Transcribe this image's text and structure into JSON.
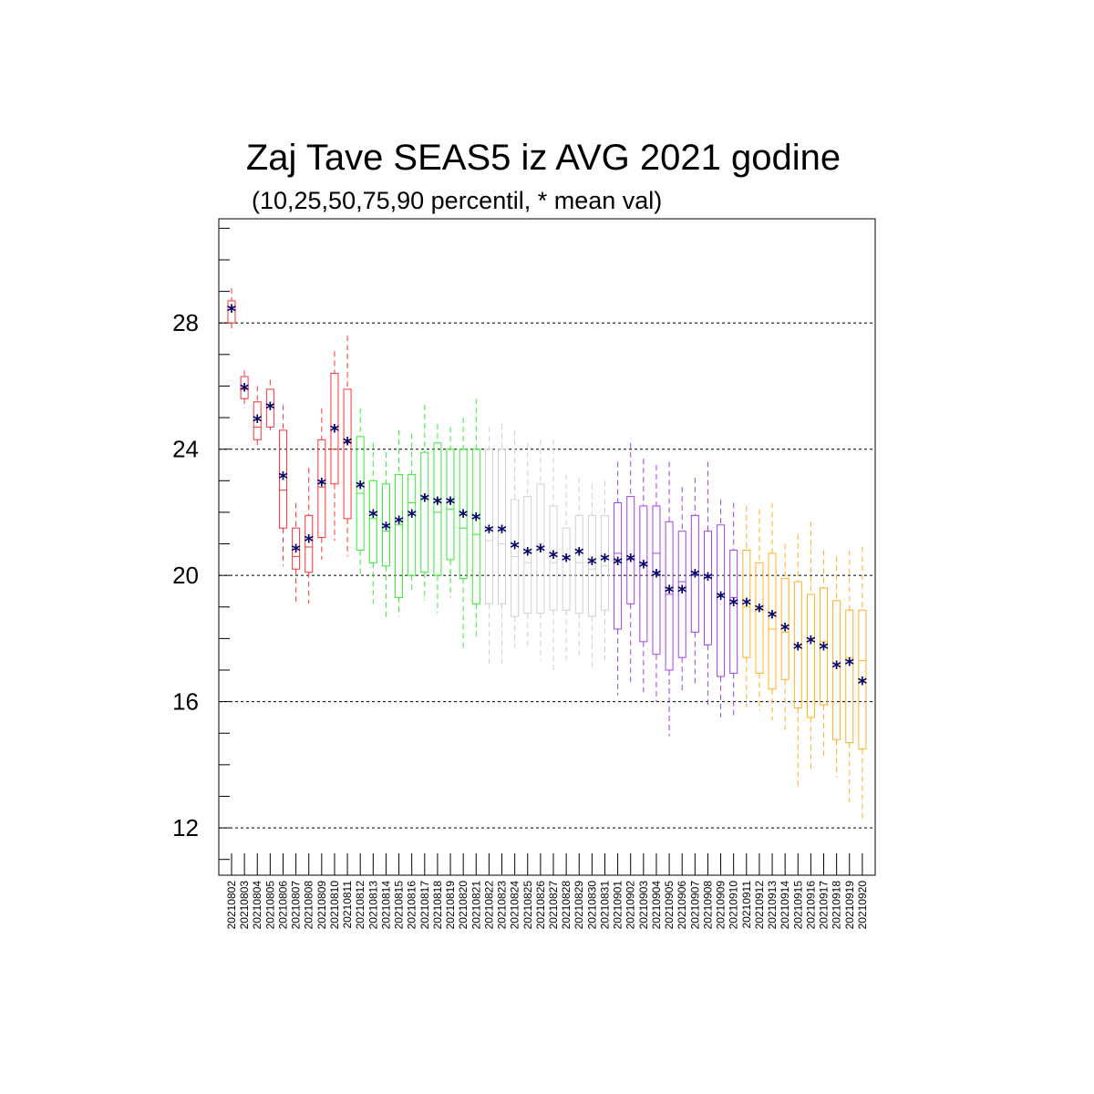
{
  "chart_data": {
    "type": "box",
    "title": "Zaj Tave SEAS5 iz AVG 2021 godine",
    "subtitle": "(10,25,50,75,90 percentil, * mean val)",
    "xlabel": "",
    "ylabel": "",
    "ylim": [
      10.5,
      31.3
    ],
    "yticks": [
      12,
      16,
      20,
      24,
      28
    ],
    "grid": "horizontal dashed at major ticks",
    "mean_color": "#000066",
    "categories": [
      "20210802",
      "20210803",
      "20210804",
      "20210805",
      "20210806",
      "20210807",
      "20210808",
      "20210809",
      "20210810",
      "20210811",
      "20210812",
      "20210813",
      "20210814",
      "20210815",
      "20210816",
      "20210817",
      "20210818",
      "20210819",
      "20210820",
      "20210821",
      "20210822",
      "20210823",
      "20210824",
      "20210825",
      "20210826",
      "20210827",
      "20210828",
      "20210829",
      "20210830",
      "20210831",
      "20210901",
      "20210902",
      "20210903",
      "20210904",
      "20210905",
      "20210906",
      "20210907",
      "20210908",
      "20210909",
      "20210910",
      "20210911",
      "20210912",
      "20210913",
      "20210914",
      "20210915",
      "20210916",
      "20210917",
      "20210918",
      "20210919",
      "20210920"
    ],
    "colors": [
      "#ff3333",
      "#ff3333",
      "#ff3333",
      "#ff3333",
      "#ff3333",
      "#ff3333",
      "#ff3333",
      "#ff3333",
      "#ff3333",
      "#ff3333",
      "#33ee33",
      "#33ee33",
      "#33ee33",
      "#33ee33",
      "#33ee33",
      "#33ee33",
      "#33ee33",
      "#33ee33",
      "#33ee33",
      "#33ee33",
      "#d0d0d0",
      "#d0d0d0",
      "#d0d0d0",
      "#d0d0d0",
      "#d0d0d0",
      "#d0d0d0",
      "#d0d0d0",
      "#d0d0d0",
      "#d0d0d0",
      "#d0d0d0",
      "#a040f0",
      "#a040f0",
      "#a040f0",
      "#a040f0",
      "#a040f0",
      "#a040f0",
      "#a040f0",
      "#a040f0",
      "#a040f0",
      "#a040f0",
      "#ffb020",
      "#ffb020",
      "#ffb020",
      "#ffb020",
      "#ffb020",
      "#ffb020",
      "#ffb020",
      "#ffb020",
      "#ffb020",
      "#ffb020"
    ],
    "p10": [
      27.7,
      25.3,
      24.0,
      24.6,
      20.3,
      19.1,
      19.1,
      20.5,
      21.1,
      20.6,
      20.0,
      19.1,
      18.6,
      18.7,
      19.5,
      19.2,
      18.8,
      19.3,
      17.7,
      18.0,
      17.2,
      17.2,
      17.7,
      17.7,
      17.3,
      17.0,
      17.3,
      17.4,
      17.0,
      17.3,
      16.2,
      16.5,
      16.3,
      16.0,
      14.9,
      16.3,
      16.5,
      15.8,
      15.5,
      15.5,
      15.8,
      15.7,
      15.4,
      15.1,
      13.2,
      13.8,
      14.2,
      13.6,
      12.8,
      12.3
    ],
    "p25": [
      28.0,
      25.6,
      24.3,
      24.7,
      21.5,
      20.2,
      20.1,
      21.2,
      22.9,
      21.8,
      20.8,
      20.4,
      20.3,
      19.3,
      20.0,
      20.1,
      20.0,
      20.5,
      19.9,
      19.1,
      19.1,
      19.1,
      18.7,
      18.8,
      18.8,
      18.9,
      18.9,
      18.8,
      18.7,
      18.9,
      18.3,
      19.1,
      17.9,
      17.5,
      17.0,
      17.4,
      18.2,
      17.8,
      16.8,
      16.9,
      17.4,
      16.9,
      16.4,
      16.7,
      15.8,
      15.5,
      15.9,
      14.8,
      14.7,
      14.5
    ],
    "p50": [
      28.5,
      25.9,
      24.7,
      25.4,
      22.7,
      20.6,
      20.9,
      22.8,
      24.0,
      24.2,
      22.6,
      21.8,
      21.4,
      21.6,
      22.3,
      22.5,
      22.0,
      22.1,
      21.5,
      21.3,
      21.1,
      21.0,
      20.6,
      20.4,
      21.0,
      20.4,
      20.6,
      20.4,
      20.2,
      20.3,
      20.7,
      20.5,
      20.4,
      20.7,
      19.4,
      19.8,
      20.0,
      20.0,
      19.4,
      19.3,
      19.0,
      18.9,
      18.3,
      18.2,
      17.8,
      18.0,
      17.9,
      17.2,
      17.4,
      17.3
    ],
    "p75": [
      28.7,
      26.3,
      25.5,
      25.9,
      24.6,
      21.5,
      21.9,
      24.3,
      26.4,
      25.9,
      24.4,
      23.0,
      22.9,
      23.2,
      23.2,
      23.9,
      24.2,
      24.0,
      24.0,
      24.0,
      24.0,
      24.0,
      22.4,
      22.5,
      22.9,
      22.2,
      21.5,
      21.9,
      21.9,
      21.9,
      22.3,
      22.5,
      22.2,
      22.2,
      21.7,
      21.4,
      21.9,
      21.4,
      21.6,
      20.8,
      20.8,
      20.4,
      20.7,
      19.9,
      19.8,
      19.4,
      19.6,
      19.2,
      18.9,
      18.9
    ],
    "p90": [
      29.1,
      26.5,
      26.0,
      26.2,
      25.4,
      22.3,
      23.4,
      25.3,
      27.1,
      27.6,
      25.3,
      24.2,
      23.9,
      24.6,
      24.5,
      25.4,
      24.8,
      24.7,
      25.0,
      25.6,
      24.7,
      24.8,
      24.6,
      24.2,
      24.3,
      24.3,
      23.2,
      23.1,
      22.9,
      23.0,
      23.6,
      24.2,
      23.7,
      23.5,
      23.6,
      22.8,
      23.1,
      23.6,
      22.4,
      22.3,
      22.2,
      22.1,
      22.3,
      21.0,
      21.3,
      21.7,
      20.8,
      20.6,
      20.8,
      20.9
    ],
    "mean": [
      28.4,
      25.9,
      24.9,
      25.3,
      23.1,
      20.8,
      21.1,
      22.9,
      24.6,
      24.2,
      22.8,
      21.9,
      21.5,
      21.7,
      21.9,
      22.4,
      22.3,
      22.3,
      21.9,
      21.8,
      21.4,
      21.4,
      20.9,
      20.7,
      20.8,
      20.6,
      20.5,
      20.7,
      20.4,
      20.5,
      20.4,
      20.5,
      20.3,
      20.0,
      19.5,
      19.5,
      20.0,
      19.9,
      19.3,
      19.1,
      19.1,
      18.9,
      18.7,
      18.3,
      17.7,
      17.9,
      17.7,
      17.1,
      17.2,
      16.6
    ]
  }
}
